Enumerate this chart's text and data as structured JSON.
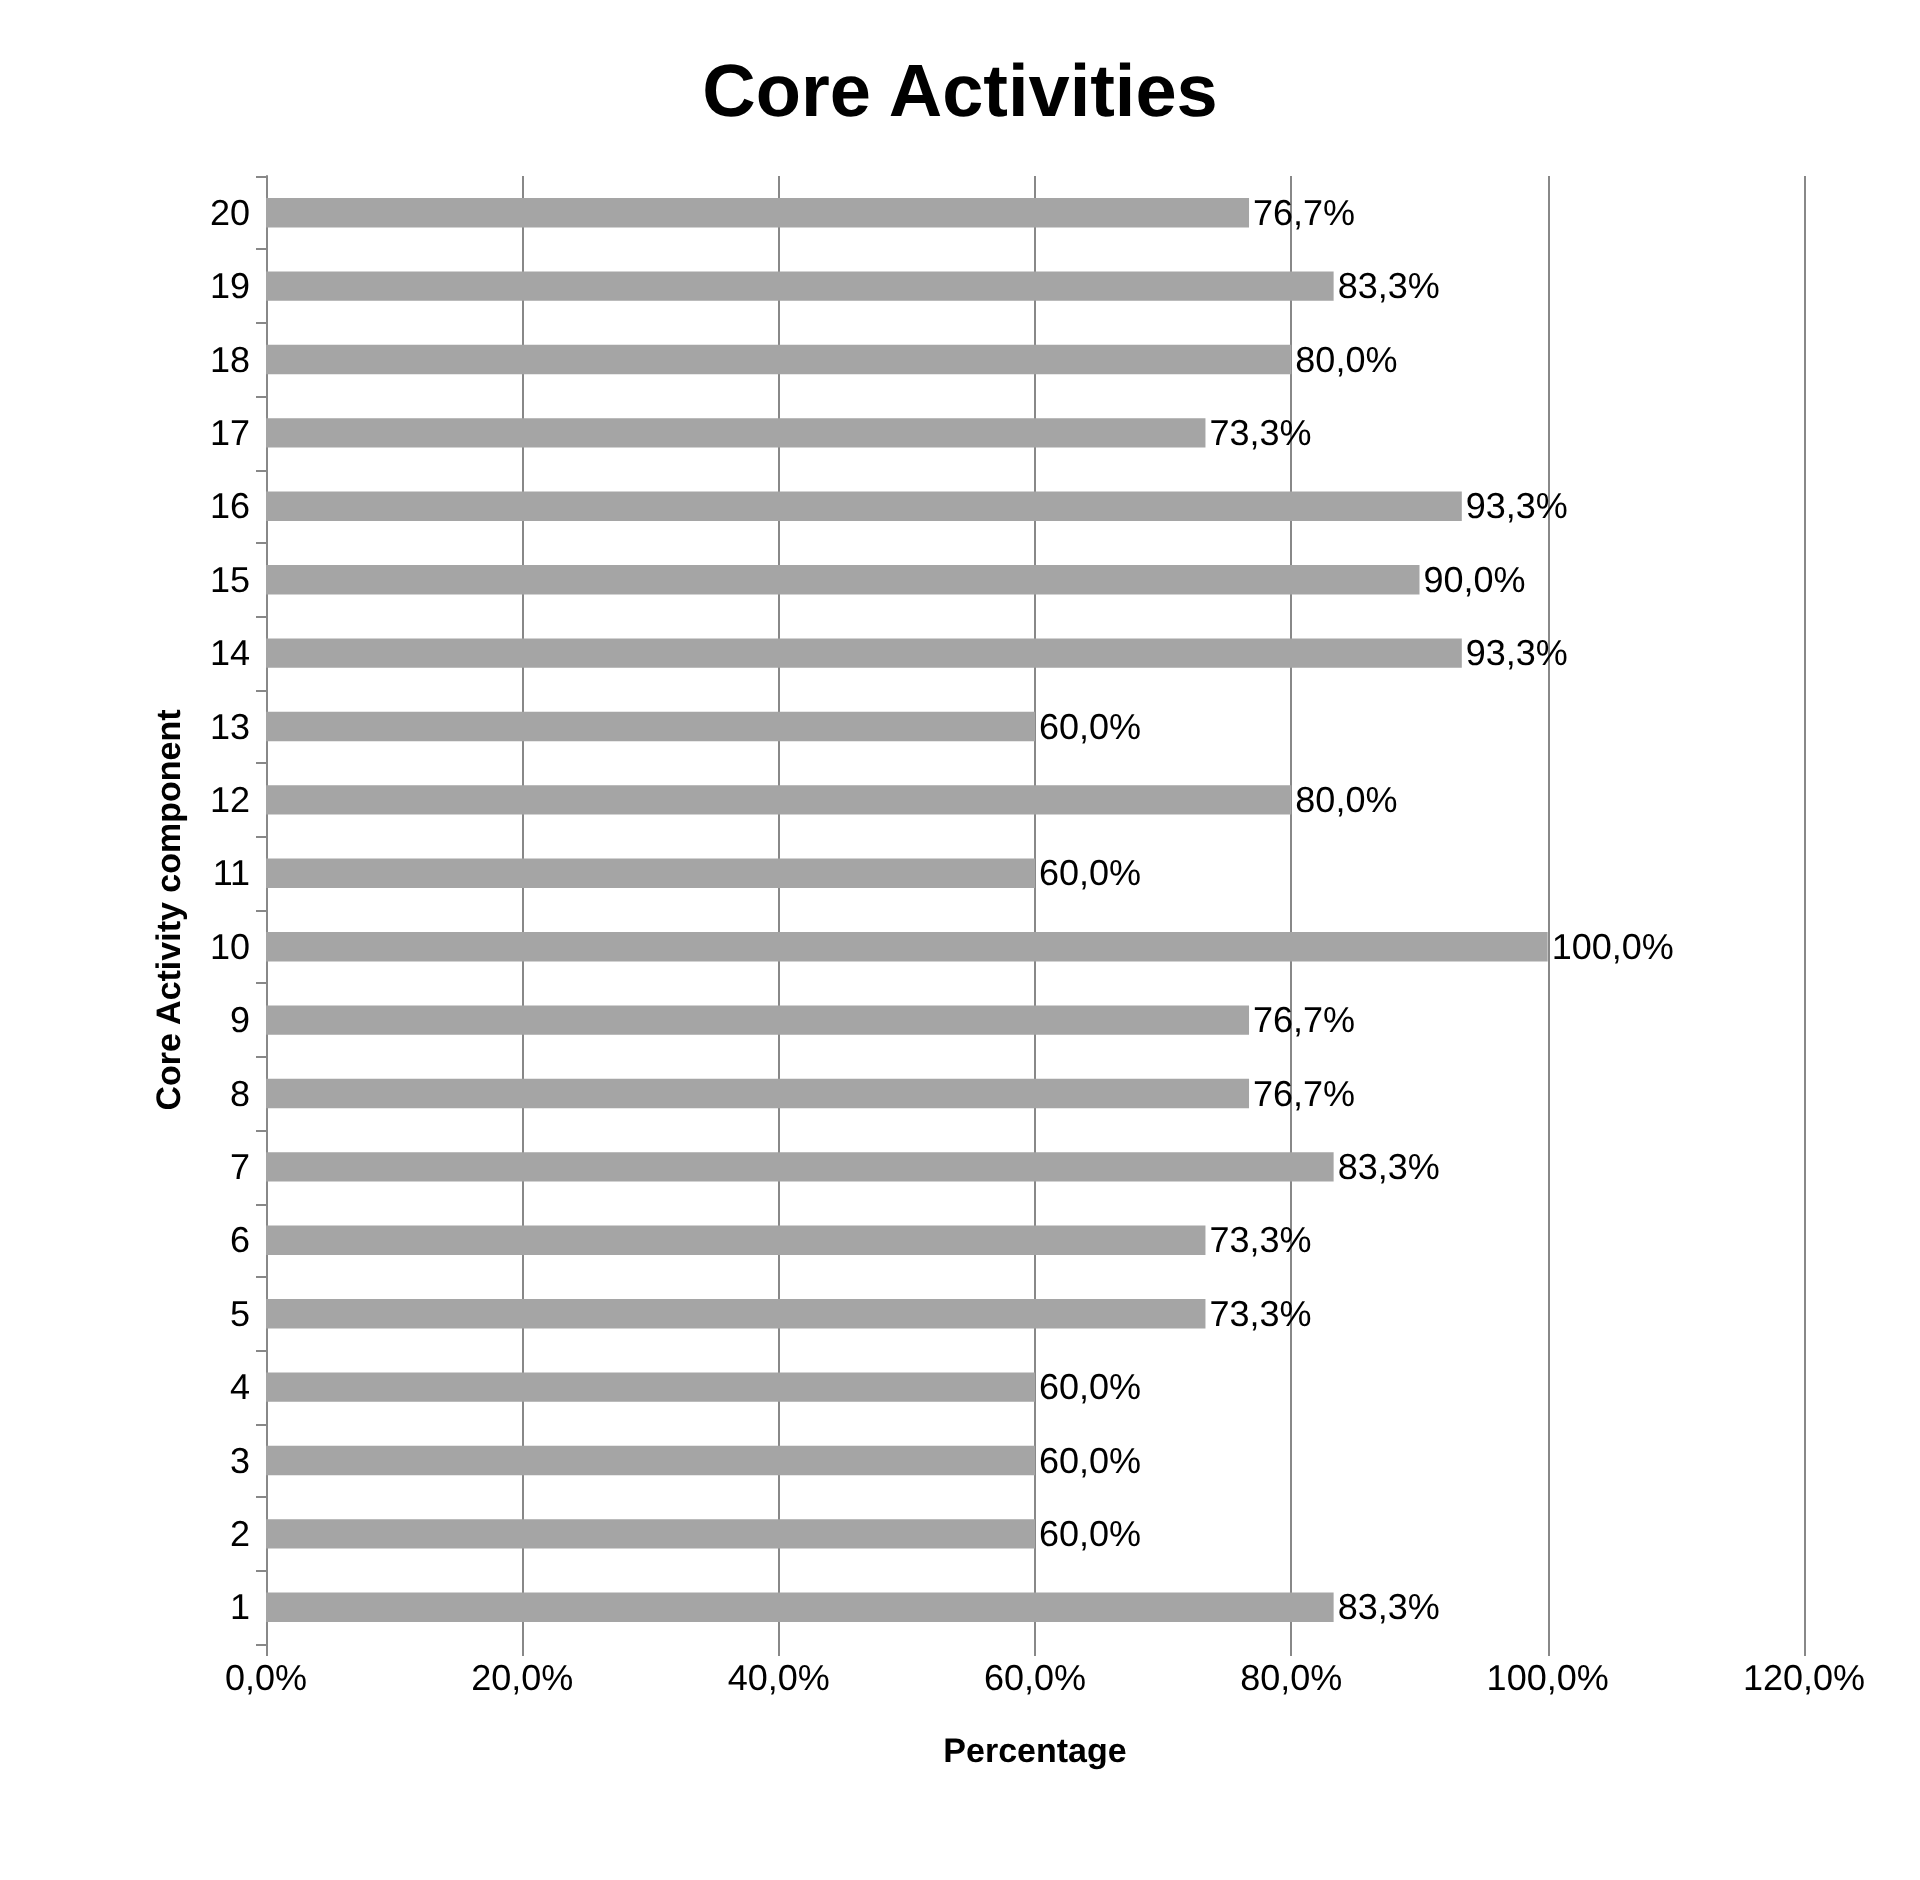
{
  "chart_data": {
    "type": "bar",
    "orientation": "horizontal",
    "title": "Core Activities",
    "xlabel": "Percentage",
    "ylabel": "Core Activity component",
    "categories": [
      "20",
      "19",
      "18",
      "17",
      "16",
      "15",
      "14",
      "13",
      "12",
      "11",
      "10",
      "9",
      "8",
      "7",
      "6",
      "5",
      "4",
      "3",
      "2",
      "1"
    ],
    "values": [
      76.7,
      83.3,
      80.0,
      73.3,
      93.3,
      90.0,
      93.3,
      60.0,
      80.0,
      60.0,
      100.0,
      76.7,
      76.7,
      83.3,
      73.3,
      73.3,
      60.0,
      60.0,
      60.0,
      83.3
    ],
    "value_labels": [
      "76,7%",
      "83,3%",
      "80,0%",
      "73,3%",
      "93,3%",
      "90,0%",
      "93,3%",
      "60,0%",
      "80,0%",
      "60,0%",
      "100,0%",
      "76,7%",
      "76,7%",
      "83,3%",
      "73,3%",
      "73,3%",
      "60,0%",
      "60,0%",
      "60,0%",
      "83,3%"
    ],
    "color": "#a5a5a5",
    "xlim": [
      0,
      120
    ],
    "xticks": [
      {
        "value": 0,
        "label": "0,0%"
      },
      {
        "value": 20,
        "label": "20,0%"
      },
      {
        "value": 40,
        "label": "40,0%"
      },
      {
        "value": 60,
        "label": "60,0%"
      },
      {
        "value": 80,
        "label": "80,0%"
      },
      {
        "value": 100,
        "label": "100,0%"
      },
      {
        "value": 120,
        "label": "120,0%"
      }
    ],
    "grid": "x"
  }
}
